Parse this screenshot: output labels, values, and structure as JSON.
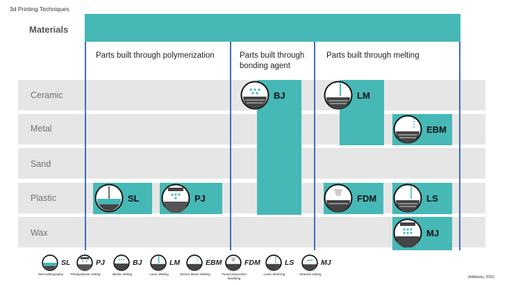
{
  "title": "3d Printing Techniques",
  "materials_label": "Materials",
  "groups": [
    {
      "header": "Parts built through polymerization"
    },
    {
      "header": "Parts built through bonding agent"
    },
    {
      "header": "Parts built through melting"
    }
  ],
  "rows": [
    "Ceramic",
    "Metal",
    "Sand",
    "Plastic",
    "Wax"
  ],
  "badges": {
    "sl": "SL",
    "pj": "PJ",
    "bj": "BJ",
    "lm": "LM",
    "ebm": "EBM",
    "fdm": "FDM",
    "ls": "LS",
    "mj": "MJ"
  },
  "legend": [
    {
      "code": "SL",
      "name": "Stereolithography",
      "icon": "stereolithography-icon"
    },
    {
      "code": "PJ",
      "name": "Photopolymer Jetting",
      "icon": "photopolymer-jetting-icon"
    },
    {
      "code": "BJ",
      "name": "Binder Jetting",
      "icon": "binder-jetting-icon"
    },
    {
      "code": "LM",
      "name": "Laser Melting",
      "icon": "laser-melting-icon"
    },
    {
      "code": "EBM",
      "name": "Electro Beam Melting",
      "icon": "electron-beam-melting-icon"
    },
    {
      "code": "FDM",
      "name": "Fused Deposition Modeling",
      "icon": "fused-deposition-modeling-icon"
    },
    {
      "code": "LS",
      "name": "Laser Sintering",
      "icon": "laser-sintering-icon"
    },
    {
      "code": "MJ",
      "name": "Material Jetting",
      "icon": "material-jetting-icon"
    }
  ],
  "citation": "(Additively, 2020)",
  "colors": {
    "accent": "#46b8b6",
    "divider": "#3c6fb3",
    "row_band": "#e6e6e6"
  }
}
